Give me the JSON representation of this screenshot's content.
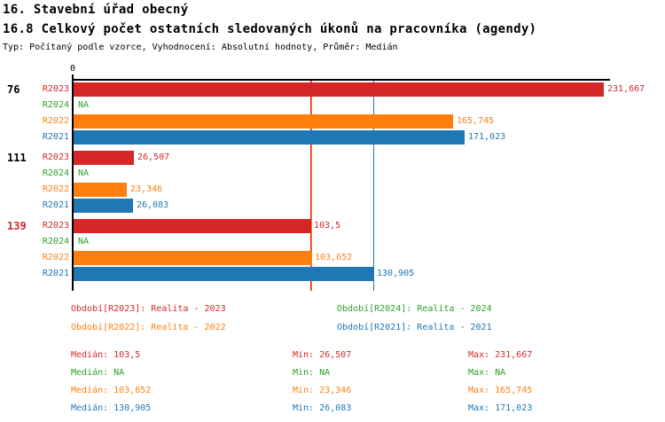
{
  "header": {
    "title_line1": "16. Stavební úřad obecný",
    "title_line2": "16.8 Celkový počet ostatních sledovaných úkonů na pracovníka (agendy)",
    "subtitle": "Typ: Počítaný podle vzorce, Vyhodnocení: Absolutní hodnoty, Průměr: Medián"
  },
  "colors": {
    "R2023": "#d62728",
    "R2024": "#2ca02c",
    "R2022": "#ff7f0e",
    "R2021": "#1f77b4",
    "axis": "#000000",
    "highlight_group_id": "#d62728"
  },
  "chart_data": {
    "type": "bar",
    "orientation": "horizontal",
    "axis": {
      "zero_label": "0",
      "min": 0,
      "max_value_shown": 231.667,
      "grid": "median-lines-only"
    },
    "series_order": [
      "R2023",
      "R2024",
      "R2022",
      "R2021"
    ],
    "groups": [
      {
        "id": "76",
        "id_color": "#000000",
        "rows": [
          {
            "series": "R2023",
            "value": 231.667,
            "display": "231,667"
          },
          {
            "series": "R2024",
            "value": null,
            "display": "NA"
          },
          {
            "series": "R2022",
            "value": 165.745,
            "display": "165,745"
          },
          {
            "series": "R2021",
            "value": 171.023,
            "display": "171,023"
          }
        ]
      },
      {
        "id": "111",
        "id_color": "#000000",
        "rows": [
          {
            "series": "R2023",
            "value": 26.507,
            "display": "26,507"
          },
          {
            "series": "R2024",
            "value": null,
            "display": "NA"
          },
          {
            "series": "R2022",
            "value": 23.346,
            "display": "23,346"
          },
          {
            "series": "R2021",
            "value": 26.083,
            "display": "26,083"
          }
        ]
      },
      {
        "id": "139",
        "id_color": "#d62728",
        "rows": [
          {
            "series": "R2023",
            "value": 103.5,
            "display": "103,5"
          },
          {
            "series": "R2024",
            "value": null,
            "display": "NA"
          },
          {
            "series": "R2022",
            "value": 103.652,
            "display": "103,652"
          },
          {
            "series": "R2021",
            "value": 130.905,
            "display": "130,905"
          }
        ]
      }
    ],
    "median_lines": [
      {
        "series": "R2023",
        "value": 103.5
      },
      {
        "series": "R2022",
        "value": 103.652
      },
      {
        "series": "R2021",
        "value": 130.905
      }
    ],
    "legend": [
      {
        "series": "R2023",
        "label": "Období[R2023]: Realita - 2023"
      },
      {
        "series": "R2024",
        "label": "Období[R2024]: Realita - 2024"
      },
      {
        "series": "R2022",
        "label": "Období[R2022]: Realita - 2022"
      },
      {
        "series": "R2021",
        "label": "Období[R2021]: Realita - 2021"
      }
    ],
    "stat_labels": {
      "median": "Medián",
      "min": "Min",
      "max": "Max"
    },
    "stats": [
      {
        "series": "R2023",
        "median": "103,5",
        "min": "26,507",
        "max": "231,667"
      },
      {
        "series": "R2024",
        "median": "NA",
        "min": "NA",
        "max": "NA"
      },
      {
        "series": "R2022",
        "median": "103,652",
        "min": "23,346",
        "max": "165,745"
      },
      {
        "series": "R2021",
        "median": "130,905",
        "min": "26,083",
        "max": "171,023"
      }
    ]
  }
}
